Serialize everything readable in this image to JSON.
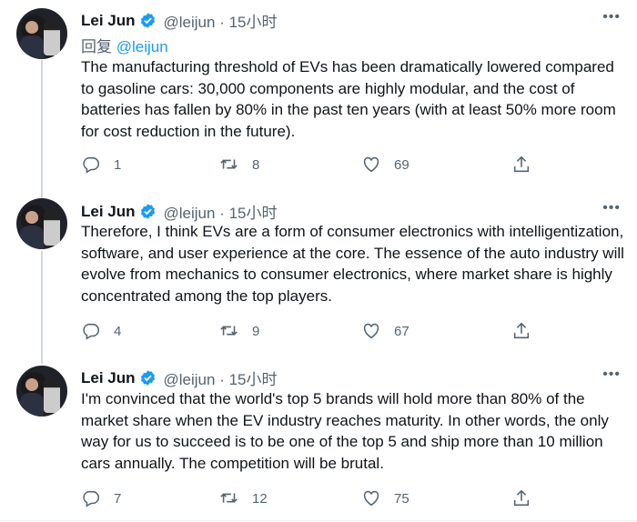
{
  "colors": {
    "accent": "#1d9bf0",
    "secondary_text": "#536471"
  },
  "tweets": [
    {
      "name": "Lei Jun",
      "handle": "@leijun · 15小时",
      "reply_prefix": "回复 ",
      "reply_to": "@leijun",
      "text": "The manufacturing threshold of EVs has been dramatically lowered compared to gasoline cars: 30,000 components are highly modular, and the cost of batteries has fallen by 80% in the past ten years (with at least 50% more room for cost reduction in the future).",
      "replies": "1",
      "retweets": "8",
      "likes": "69"
    },
    {
      "name": "Lei Jun",
      "handle": "@leijun · 15小时",
      "text": "Therefore, I think EVs are a form of consumer electronics with intelligentization, software, and user experience at the core. The essence of the auto industry will evolve from mechanics to consumer electronics, where market share is highly concentrated among the top players.",
      "replies": "4",
      "retweets": "9",
      "likes": "67"
    },
    {
      "name": "Lei Jun",
      "handle": "@leijun · 15小时",
      "text": "I'm convinced that the world's top 5 brands will hold more than 80% of the market share when the EV industry reaches maturity. In other words, the only way for us to succeed is to be one of the top 5 and ship more than 10 million cars annually. The competition will be brutal.",
      "replies": "7",
      "retweets": "12",
      "likes": "75"
    }
  ],
  "more_label": "•••"
}
